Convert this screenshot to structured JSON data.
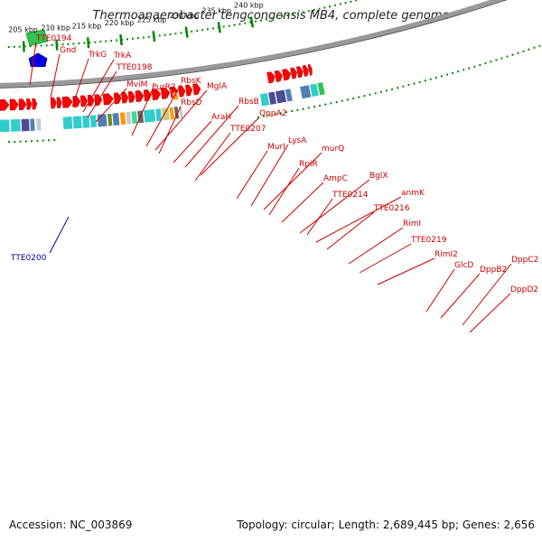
{
  "header": {
    "title": "Thermoanaerobacter tengcongensis MB4, complete genome"
  },
  "footer": {
    "accession": "Accession: NC_003869",
    "summary": "Topology: circular; Length: 2,689,445 bp; Genes: 2,656"
  },
  "colors": {
    "forward_gene": "#ff0000",
    "category_cyan": "#33cccc",
    "category_purple": "#4b4b96",
    "category_steelblue": "#4f7fb4",
    "category_orange": "#ff9900",
    "category_gray": "#c8c8c8",
    "category_darkgray": "#666666",
    "category_green": "#2ec44f",
    "category_olive": "#6b8e23",
    "category_khaki": "#c9c97a",
    "category_teal": "#3fd7a0",
    "reverse_special": "#0000dd",
    "tick": "#008800",
    "backbone": "#999999",
    "label": "#cc0000",
    "highlight_label": "#0000aa"
  },
  "gene_labels": [
    "TTE0194",
    "Gnd",
    "TrkG",
    "TrkA",
    "TTE0198",
    "MviM",
    "PurR2",
    "RbsK",
    "MglA",
    "RbsD",
    "RbsB",
    "AraH",
    "OppA2",
    "TTE0207",
    "MurI",
    "LysA",
    "murQ",
    "RpiR",
    "AmpC",
    "BglX",
    "TTE0214",
    "anmK",
    "TTE0216",
    "RimI",
    "TTE0219",
    "RimI2",
    "GlcD",
    "DppB2",
    "DppC2",
    "DppD2"
  ],
  "highlight_label": "TTE0200",
  "kbp_labels": [
    "205 kbp",
    "210 kbp",
    "215 kbp",
    "220 kbp",
    "225 kbp",
    "230 kbp",
    "235 kbp",
    "240 kbp"
  ]
}
